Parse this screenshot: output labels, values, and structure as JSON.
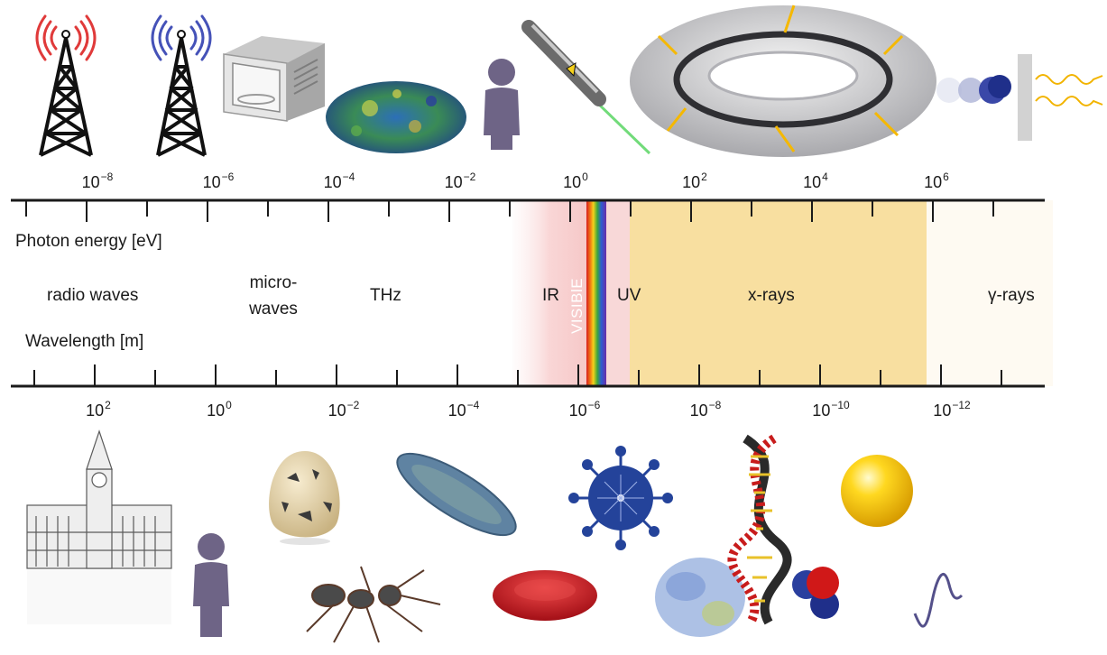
{
  "axis_titles": {
    "energy": "Photon energy [eV]",
    "wavelength": "Wavelength [m]"
  },
  "energy_ticks": [
    {
      "base": "10",
      "exp": "−8"
    },
    {
      "base": "10",
      "exp": "−6"
    },
    {
      "base": "10",
      "exp": "−4"
    },
    {
      "base": "10",
      "exp": "−2"
    },
    {
      "base": "10",
      "exp": "0"
    },
    {
      "base": "10",
      "exp": "2"
    },
    {
      "base": "10",
      "exp": "4"
    },
    {
      "base": "10",
      "exp": "6"
    }
  ],
  "wavelength_ticks": [
    {
      "base": "10",
      "exp": "2"
    },
    {
      "base": "10",
      "exp": "0"
    },
    {
      "base": "10",
      "exp": "−2"
    },
    {
      "base": "10",
      "exp": "−4"
    },
    {
      "base": "10",
      "exp": "−6"
    },
    {
      "base": "10",
      "exp": "−8"
    },
    {
      "base": "10",
      "exp": "−10"
    },
    {
      "base": "10",
      "exp": "−12"
    }
  ],
  "bands": {
    "radio": "radio waves",
    "micro_line1": "micro-",
    "micro_line2": "waves",
    "thz": "THz",
    "ir": "IR",
    "visible": "VISIBlE",
    "uv": "UV",
    "xrays": "x-rays",
    "gamma": "γ-rays"
  },
  "colors": {
    "ir_band": "#f9d6d6",
    "xray_band": "#f8dfa0",
    "axis": "#1a1a1a",
    "person": "#6e6486",
    "virus": "#24439a",
    "blood_cell": "#c8101a",
    "gold_sphere": "#f5c000"
  },
  "icons": [
    "radio-tower-icon",
    "radio-tower-icon",
    "microwave-oven-icon",
    "cmb-map-icon",
    "person-icon",
    "laser-pointer-icon",
    "synchrotron-ring-icon",
    "gamma-emission-icon",
    "big-ben-building-icon",
    "person-icon",
    "quail-egg-icon",
    "ant-icon",
    "paramecium-icon",
    "red-blood-cell-icon",
    "virus-icon",
    "protein-icon",
    "dna-helix-icon",
    "water-molecule-icon",
    "atom-sphere-icon",
    "sine-wave-icon"
  ]
}
